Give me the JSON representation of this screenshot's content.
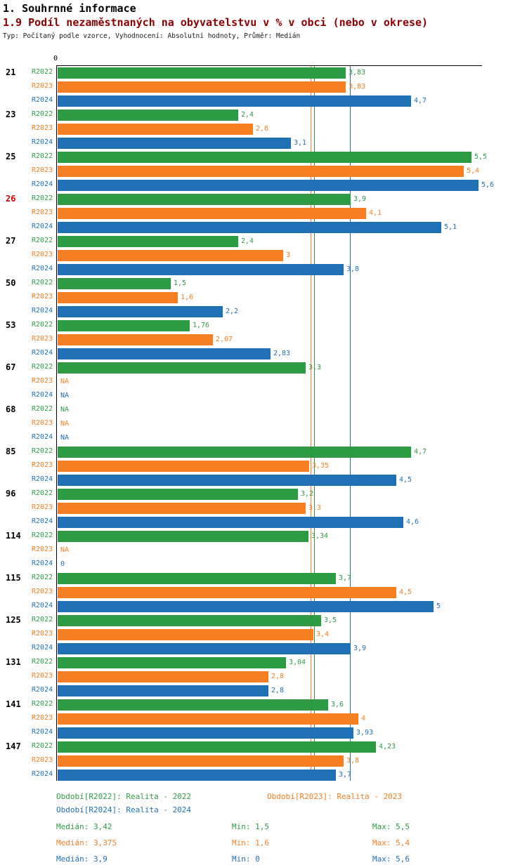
{
  "header": {
    "title_line1": "1. Souhrnné informace",
    "title_line2": "1.9 Podíl nezaměstnaných na obyvatelstvu v % v obci (nebo v okrese)",
    "subtitle": "Typ: Počítaný podle vzorce, Vyhodnocení: Absolutní hodnoty, Průměr: Medián"
  },
  "colors": {
    "series_r2022": "#2E9B44",
    "series_r2023": "#F57F22",
    "series_r2024": "#2070B4",
    "section_title": "#8B0000",
    "highlight_row_label": "#CC0000",
    "axis": "#000000"
  },
  "chart_data": {
    "type": "bar",
    "orientation": "horizontal",
    "title": "1.9 Podíl nezaměstnaných na obyvatelstvu v % v obci (nebo v okrese)",
    "xlabel": "",
    "ylabel": "",
    "x_axis": {
      "zero_label": "0",
      "min": 0,
      "max": 5.65
    },
    "grid": false,
    "legend_position": "bottom",
    "series": [
      {
        "name": "R2022",
        "color": "#2E9B44",
        "median": 3.42,
        "min": 1.5,
        "max": 5.5
      },
      {
        "name": "R2023",
        "color": "#F57F22",
        "median": 3.375,
        "min": 1.6,
        "max": 5.4
      },
      {
        "name": "R2024",
        "color": "#2070B4",
        "median": 3.9,
        "min": 0,
        "max": 5.6
      }
    ],
    "groups": [
      {
        "label": "21",
        "highlight": false,
        "values": [
          3.83,
          3.83,
          4.7
        ],
        "display": [
          "3,83",
          "3,83",
          "4,7"
        ]
      },
      {
        "label": "23",
        "highlight": false,
        "values": [
          2.4,
          2.6,
          3.1
        ],
        "display": [
          "2,4",
          "2,6",
          "3,1"
        ]
      },
      {
        "label": "25",
        "highlight": false,
        "values": [
          5.5,
          5.4,
          5.6
        ],
        "display": [
          "5,5",
          "5,4",
          "5,6"
        ]
      },
      {
        "label": "26",
        "highlight": true,
        "values": [
          3.9,
          4.1,
          5.1
        ],
        "display": [
          "3,9",
          "4,1",
          "5,1"
        ]
      },
      {
        "label": "27",
        "highlight": false,
        "values": [
          2.4,
          3,
          3.8
        ],
        "display": [
          "2,4",
          "3",
          "3,8"
        ]
      },
      {
        "label": "50",
        "highlight": false,
        "values": [
          1.5,
          1.6,
          2.2
        ],
        "display": [
          "1,5",
          "1,6",
          "2,2"
        ]
      },
      {
        "label": "53",
        "highlight": false,
        "values": [
          1.76,
          2.07,
          2.83
        ],
        "display": [
          "1,76",
          "2,07",
          "2,83"
        ]
      },
      {
        "label": "67",
        "highlight": false,
        "values": [
          3.3,
          null,
          null
        ],
        "display": [
          "3,3",
          "NA",
          "NA"
        ]
      },
      {
        "label": "68",
        "highlight": false,
        "values": [
          null,
          null,
          null
        ],
        "display": [
          "NA",
          "NA",
          "NA"
        ]
      },
      {
        "label": "85",
        "highlight": false,
        "values": [
          4.7,
          3.35,
          4.5
        ],
        "display": [
          "4,7",
          "3,35",
          "4,5"
        ]
      },
      {
        "label": "96",
        "highlight": false,
        "values": [
          3.2,
          3.3,
          4.6
        ],
        "display": [
          "3,2",
          "3,3",
          "4,6"
        ]
      },
      {
        "label": "114",
        "highlight": false,
        "values": [
          3.34,
          null,
          0
        ],
        "display": [
          "3,34",
          "NA",
          "0"
        ]
      },
      {
        "label": "115",
        "highlight": false,
        "values": [
          3.7,
          4.5,
          5
        ],
        "display": [
          "3,7",
          "4,5",
          "5"
        ]
      },
      {
        "label": "125",
        "highlight": false,
        "values": [
          3.5,
          3.4,
          3.9
        ],
        "display": [
          "3,5",
          "3,4",
          "3,9"
        ]
      },
      {
        "label": "131",
        "highlight": false,
        "values": [
          3.04,
          2.8,
          2.8
        ],
        "display": [
          "3,04",
          "2,8",
          "2,8"
        ]
      },
      {
        "label": "141",
        "highlight": false,
        "values": [
          3.6,
          4,
          3.93
        ],
        "display": [
          "3,6",
          "4",
          "3,93"
        ]
      },
      {
        "label": "147",
        "highlight": false,
        "values": [
          4.23,
          3.8,
          3.7
        ],
        "display": [
          "4,23",
          "3,8",
          "3,7"
        ]
      }
    ]
  },
  "legend": {
    "r2022": "Období[R2022]: Realita - 2022",
    "r2023": "Období[R2023]: Realita - 2023",
    "r2024": "Období[R2024]: Realita - 2024"
  },
  "stats": {
    "r2022": {
      "median": "Medián: 3,42",
      "min": "Min: 1,5",
      "max": "Max: 5,5"
    },
    "r2023": {
      "median": "Medián: 3,375",
      "min": "Min: 1,6",
      "max": "Max: 5,4"
    },
    "r2024": {
      "median": "Medián: 3,9",
      "min": "Min: 0",
      "max": "Max: 5,6"
    }
  }
}
